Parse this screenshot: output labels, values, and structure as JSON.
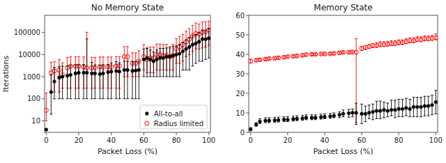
{
  "chart_data": [
    {
      "type": "scatter",
      "title": "No Memory State",
      "xlabel": "Packet Loss (%)",
      "ylabel": "Iterations",
      "xlim": [
        -1,
        101
      ],
      "xticks": [
        0,
        20,
        40,
        60,
        80,
        100
      ],
      "ylim": [
        3,
        600000
      ],
      "yticks": [
        10,
        100,
        1000,
        10000,
        100000
      ],
      "log": "y",
      "grid": false,
      "legend": "lower right",
      "series": [
        {
          "name": "All-to-all",
          "color": "#000000",
          "marker": "circle",
          "x": [
            0,
            3,
            5,
            8,
            10,
            13,
            15,
            18,
            20,
            23,
            25,
            28,
            30,
            33,
            35,
            38,
            40,
            43,
            45,
            48,
            50,
            53,
            55,
            57,
            60,
            62,
            64,
            66,
            68,
            70,
            72,
            74,
            76,
            78,
            80,
            82,
            84,
            86,
            88,
            90,
            92,
            94,
            96,
            98,
            100
          ],
          "values": [
            4,
            200,
            600,
            900,
            1000,
            1100,
            1200,
            1400,
            1500,
            1500,
            1500,
            1400,
            1400,
            1300,
            1400,
            1600,
            1700,
            1800,
            1700,
            2000,
            2000,
            1800,
            1900,
            2000,
            6000,
            7000,
            6000,
            5000,
            6000,
            7000,
            7000,
            8000,
            8000,
            9000,
            10000,
            11000,
            14000,
            18000,
            22000,
            28000,
            32000,
            38000,
            50000,
            50000,
            55000
          ],
          "error_low": [
            0,
            180,
            500,
            800,
            900,
            1000,
            1100,
            1300,
            1400,
            1400,
            1400,
            1300,
            1300,
            1200,
            1300,
            1500,
            1600,
            1700,
            1600,
            1900,
            1900,
            1700,
            1800,
            1900,
            5000,
            6000,
            5000,
            4000,
            5000,
            6000,
            6000,
            7000,
            7000,
            8000,
            9000,
            10000,
            12000,
            16000,
            20000,
            25000,
            28000,
            33000,
            45000,
            44000,
            48000
          ],
          "error_high": [
            0,
            1000,
            2000,
            2000,
            2000,
            2000,
            2000,
            2000,
            2000,
            2000,
            50000,
            3000,
            2000,
            2000,
            2000,
            2000,
            2500,
            3000,
            2500,
            3000,
            3000,
            3000,
            3000,
            3000,
            12000,
            12000,
            10000,
            8000,
            10000,
            12000,
            12000,
            12000,
            12000,
            15000,
            15000,
            18000,
            22000,
            28000,
            35000,
            45000,
            50000,
            60000,
            80000,
            70000,
            90000
          ]
        },
        {
          "name": "Radius limited",
          "color": "#ff0000",
          "marker": "open-circle",
          "x": [
            0,
            3,
            5,
            8,
            10,
            13,
            15,
            18,
            20,
            23,
            25,
            28,
            30,
            33,
            35,
            38,
            40,
            43,
            45,
            48,
            50,
            53,
            55,
            57,
            60,
            62,
            64,
            66,
            68,
            70,
            72,
            74,
            76,
            78,
            80,
            82,
            84,
            86,
            88,
            90,
            92,
            94,
            96,
            98,
            100
          ],
          "values": [
            30,
            1500,
            1800,
            2000,
            1200,
            2500,
            3000,
            3000,
            3000,
            2800,
            2500,
            2500,
            2500,
            2800,
            2800,
            2800,
            2800,
            3000,
            3000,
            8000,
            8000,
            4000,
            4000,
            5000,
            8000,
            6000,
            7000,
            7000,
            10000,
            10000,
            9000,
            9000,
            8000,
            9000,
            18000,
            22000,
            28000,
            38000,
            50000,
            70000,
            90000,
            85000,
            100000,
            110000,
            130000
          ],
          "error_low": [
            20,
            1300,
            1600,
            1800,
            900,
            2200,
            2700,
            2700,
            2700,
            2500,
            2200,
            2200,
            2200,
            2500,
            2500,
            2500,
            2500,
            2700,
            2700,
            7000,
            7000,
            3000,
            3000,
            4000,
            6000,
            4500,
            5500,
            5500,
            8000,
            8000,
            7000,
            7000,
            6000,
            7000,
            14000,
            18000,
            23000,
            30000,
            40000,
            56000,
            72000,
            67000,
            80000,
            88000,
            104000
          ],
          "error_high": [
            150,
            3000,
            3000,
            4000,
            3000,
            5000,
            5000,
            5000,
            5000,
            5000,
            100000,
            5000,
            5000,
            5000,
            5000,
            5000,
            5000,
            5000,
            5000,
            15000,
            15000,
            8000,
            8000,
            10000,
            20000,
            15000,
            15000,
            15000,
            20000,
            20000,
            20000,
            20000,
            15000,
            20000,
            35000,
            45000,
            55000,
            75000,
            100000,
            140000,
            180000,
            160000,
            200000,
            200000,
            200000
          ]
        }
      ]
    },
    {
      "type": "scatter",
      "title": "Memory State",
      "xlabel": "Packet Loss (%)",
      "xlim": [
        -1,
        101
      ],
      "xticks": [
        0,
        20,
        40,
        60,
        80,
        100
      ],
      "ylim": [
        0,
        60
      ],
      "yticks": [
        0,
        10,
        20,
        30,
        40,
        50,
        60
      ],
      "grid": false,
      "series": [
        {
          "color": "#000000",
          "marker": "circle",
          "x": [
            0,
            3,
            5,
            8,
            10,
            13,
            15,
            18,
            20,
            23,
            25,
            28,
            30,
            33,
            35,
            38,
            40,
            43,
            45,
            48,
            50,
            53,
            55,
            57,
            60,
            62,
            64,
            66,
            68,
            70,
            72,
            74,
            76,
            78,
            80,
            82,
            84,
            86,
            88,
            90,
            92,
            94,
            96,
            98,
            100
          ],
          "values": [
            1.5,
            4.0,
            5.5,
            6.0,
            6.0,
            6.2,
            6.3,
            6.5,
            6.5,
            6.8,
            7.0,
            7.2,
            7.5,
            7.5,
            7.5,
            7.8,
            8.0,
            8.2,
            8.5,
            9.0,
            9.5,
            9.8,
            10.0,
            10.0,
            9.5,
            9.5,
            10.0,
            10.5,
            11.0,
            11.0,
            11.5,
            11.0,
            11.5,
            11.5,
            12.0,
            12.0,
            12.5,
            12.0,
            13.0,
            13.0,
            13.0,
            13.5,
            13.5,
            14.0,
            15.5
          ],
          "error_low": [
            0.5,
            0.8,
            1.0,
            1.0,
            1.0,
            1.0,
            1.0,
            1.0,
            1.0,
            1.0,
            1.0,
            1.0,
            1.0,
            1.0,
            1.0,
            1.0,
            1.0,
            1.0,
            1.0,
            1.5,
            1.5,
            2.0,
            2.0,
            6.0,
            5.0,
            4.0,
            3.0,
            4.0,
            4.0,
            4.0,
            4.0,
            3.0,
            3.0,
            4.0,
            4.0,
            4.0,
            4.0,
            4.0,
            5.0,
            5.0,
            5.0,
            5.0,
            5.0,
            5.0,
            6.0
          ],
          "error_high": [
            1.0,
            1.0,
            1.5,
            1.5,
            1.5,
            1.5,
            1.5,
            1.5,
            1.5,
            1.5,
            1.5,
            1.5,
            1.5,
            1.5,
            1.5,
            1.5,
            1.5,
            1.5,
            1.5,
            1.5,
            2.0,
            2.0,
            2.0,
            5.0,
            5.0,
            4.0,
            4.0,
            4.0,
            5.0,
            5.0,
            4.0,
            4.0,
            5.0,
            5.0,
            5.0,
            5.0,
            5.0,
            5.0,
            5.0,
            5.0,
            5.0,
            5.0,
            5.0,
            5.0,
            6.0
          ]
        },
        {
          "color": "#ff0000",
          "marker": "open-circle",
          "x": [
            0,
            3,
            5,
            8,
            10,
            13,
            15,
            18,
            20,
            23,
            25,
            28,
            30,
            33,
            35,
            38,
            40,
            43,
            45,
            48,
            50,
            53,
            55,
            57,
            60,
            62,
            64,
            66,
            68,
            70,
            72,
            74,
            76,
            78,
            80,
            82,
            84,
            86,
            88,
            90,
            92,
            94,
            96,
            98,
            100
          ],
          "values": [
            36.5,
            37.0,
            37.2,
            37.5,
            37.8,
            38.0,
            38.2,
            38.5,
            38.8,
            39.0,
            39.2,
            39.5,
            39.8,
            40.0,
            40.0,
            40.2,
            40.2,
            40.3,
            40.5,
            40.8,
            41.0,
            41.0,
            41.2,
            41.0,
            43.0,
            43.5,
            44.0,
            44.5,
            44.5,
            45.0,
            45.0,
            45.2,
            45.5,
            45.5,
            46.0,
            46.0,
            46.5,
            47.0,
            47.0,
            47.5,
            47.5,
            48.0,
            48.0,
            48.2,
            48.5
          ],
          "error_low": [
            1.0,
            0.5,
            0.5,
            0.5,
            0.5,
            0.5,
            0.5,
            0.5,
            0.5,
            0.5,
            0.5,
            0.5,
            0.5,
            0.5,
            0.5,
            0.5,
            0.5,
            0.5,
            0.5,
            0.5,
            0.5,
            0.5,
            0.5,
            36.0,
            1.0,
            1.0,
            1.0,
            1.0,
            1.0,
            1.0,
            1.0,
            1.0,
            1.0,
            1.0,
            1.0,
            1.0,
            1.0,
            1.0,
            1.0,
            1.0,
            1.0,
            1.0,
            1.0,
            1.0,
            1.0
          ],
          "error_high": [
            1.0,
            0.5,
            0.5,
            0.5,
            0.5,
            0.5,
            0.5,
            0.5,
            0.5,
            0.5,
            0.5,
            0.5,
            0.5,
            0.5,
            0.5,
            0.5,
            0.5,
            0.5,
            0.5,
            0.5,
            0.5,
            0.5,
            0.5,
            7.0,
            1.0,
            1.0,
            1.0,
            1.0,
            1.5,
            1.5,
            1.5,
            1.5,
            1.5,
            1.5,
            1.5,
            1.5,
            1.5,
            1.5,
            1.5,
            1.5,
            1.5,
            1.5,
            1.5,
            1.5,
            2.0
          ]
        }
      ]
    }
  ]
}
